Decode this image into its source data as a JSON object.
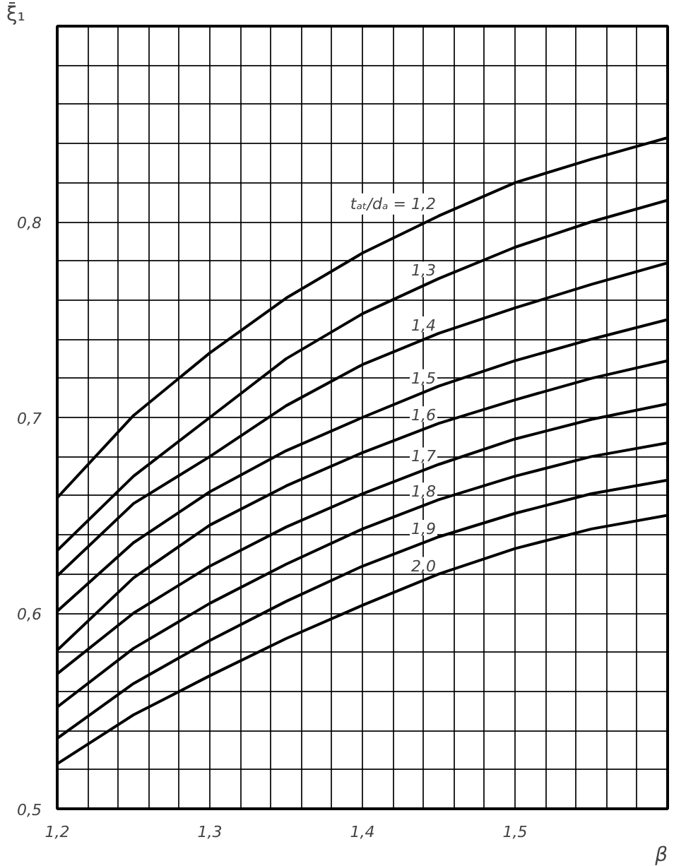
{
  "chart_data": {
    "type": "line",
    "xlabel": "β",
    "ylabel": "ξ̄₁",
    "x": [
      1.2,
      1.25,
      1.3,
      1.35,
      1.4,
      1.45,
      1.5,
      1.55,
      1.6
    ],
    "series": [
      {
        "name": "tₐₜ/dₐ = 1,2",
        "color": "#000000",
        "values": [
          0.659,
          0.701,
          0.733,
          0.761,
          0.784,
          0.803,
          0.82,
          0.832,
          0.843
        ]
      },
      {
        "name": "1,3",
        "color": "#000000",
        "values": [
          0.632,
          0.67,
          0.7,
          0.73,
          0.753,
          0.771,
          0.787,
          0.8,
          0.811
        ]
      },
      {
        "name": "1,4",
        "color": "#000000",
        "values": [
          0.619,
          0.656,
          0.68,
          0.706,
          0.727,
          0.743,
          0.756,
          0.768,
          0.779
        ]
      },
      {
        "name": "1,5",
        "color": "#000000",
        "values": [
          0.601,
          0.636,
          0.662,
          0.683,
          0.7,
          0.716,
          0.729,
          0.74,
          0.75
        ]
      },
      {
        "name": "1,6",
        "color": "#000000",
        "values": [
          0.581,
          0.618,
          0.645,
          0.665,
          0.682,
          0.697,
          0.709,
          0.72,
          0.729
        ]
      },
      {
        "name": "1,7",
        "color": "#000000",
        "values": [
          0.569,
          0.6,
          0.624,
          0.644,
          0.661,
          0.676,
          0.689,
          0.699,
          0.707
        ]
      },
      {
        "name": "1,8",
        "color": "#000000",
        "values": [
          0.552,
          0.582,
          0.605,
          0.625,
          0.643,
          0.658,
          0.67,
          0.68,
          0.687
        ]
      },
      {
        "name": "1,9",
        "color": "#000000",
        "values": [
          0.536,
          0.564,
          0.586,
          0.606,
          0.624,
          0.639,
          0.651,
          0.661,
          0.668
        ]
      },
      {
        "name": "2,0",
        "color": "#000000",
        "values": [
          0.523,
          0.548,
          0.568,
          0.587,
          0.604,
          0.62,
          0.633,
          0.643,
          0.65
        ]
      }
    ],
    "xlim": [
      1.2,
      1.6
    ],
    "ylim": [
      0.5,
      0.9
    ],
    "xticks": [
      {
        "value": 1.2,
        "label": "1,2"
      },
      {
        "value": 1.22,
        "label": null
      },
      {
        "value": 1.24,
        "label": null
      },
      {
        "value": 1.26,
        "label": null
      },
      {
        "value": 1.28,
        "label": null
      },
      {
        "value": 1.3,
        "label": "1,3"
      },
      {
        "value": 1.32,
        "label": null
      },
      {
        "value": 1.34,
        "label": null
      },
      {
        "value": 1.36,
        "label": null
      },
      {
        "value": 1.38,
        "label": null
      },
      {
        "value": 1.4,
        "label": "1,4"
      },
      {
        "value": 1.42,
        "label": null
      },
      {
        "value": 1.44,
        "label": null
      },
      {
        "value": 1.46,
        "label": null
      },
      {
        "value": 1.48,
        "label": null
      },
      {
        "value": 1.5,
        "label": "1,5"
      },
      {
        "value": 1.52,
        "label": null
      },
      {
        "value": 1.54,
        "label": null
      },
      {
        "value": 1.56,
        "label": null
      },
      {
        "value": 1.58,
        "label": null
      }
    ],
    "yticks": [
      {
        "value": 0.5,
        "label": "0,5"
      },
      {
        "value": 0.52,
        "label": null
      },
      {
        "value": 0.54,
        "label": null
      },
      {
        "value": 0.56,
        "label": null
      },
      {
        "value": 0.58,
        "label": null
      },
      {
        "value": 0.6,
        "label": "0,6"
      },
      {
        "value": 0.62,
        "label": null
      },
      {
        "value": 0.64,
        "label": null
      },
      {
        "value": 0.66,
        "label": null
      },
      {
        "value": 0.68,
        "label": null
      },
      {
        "value": 0.7,
        "label": "0,7"
      },
      {
        "value": 0.72,
        "label": null
      },
      {
        "value": 0.74,
        "label": null
      },
      {
        "value": 0.76,
        "label": null
      },
      {
        "value": 0.78,
        "label": null
      },
      {
        "value": 0.8,
        "label": "0,8"
      },
      {
        "value": 0.82,
        "label": null
      },
      {
        "value": 0.84,
        "label": null
      },
      {
        "value": 0.86,
        "label": null
      },
      {
        "value": 0.88,
        "label": null
      }
    ],
    "grid": true
  }
}
